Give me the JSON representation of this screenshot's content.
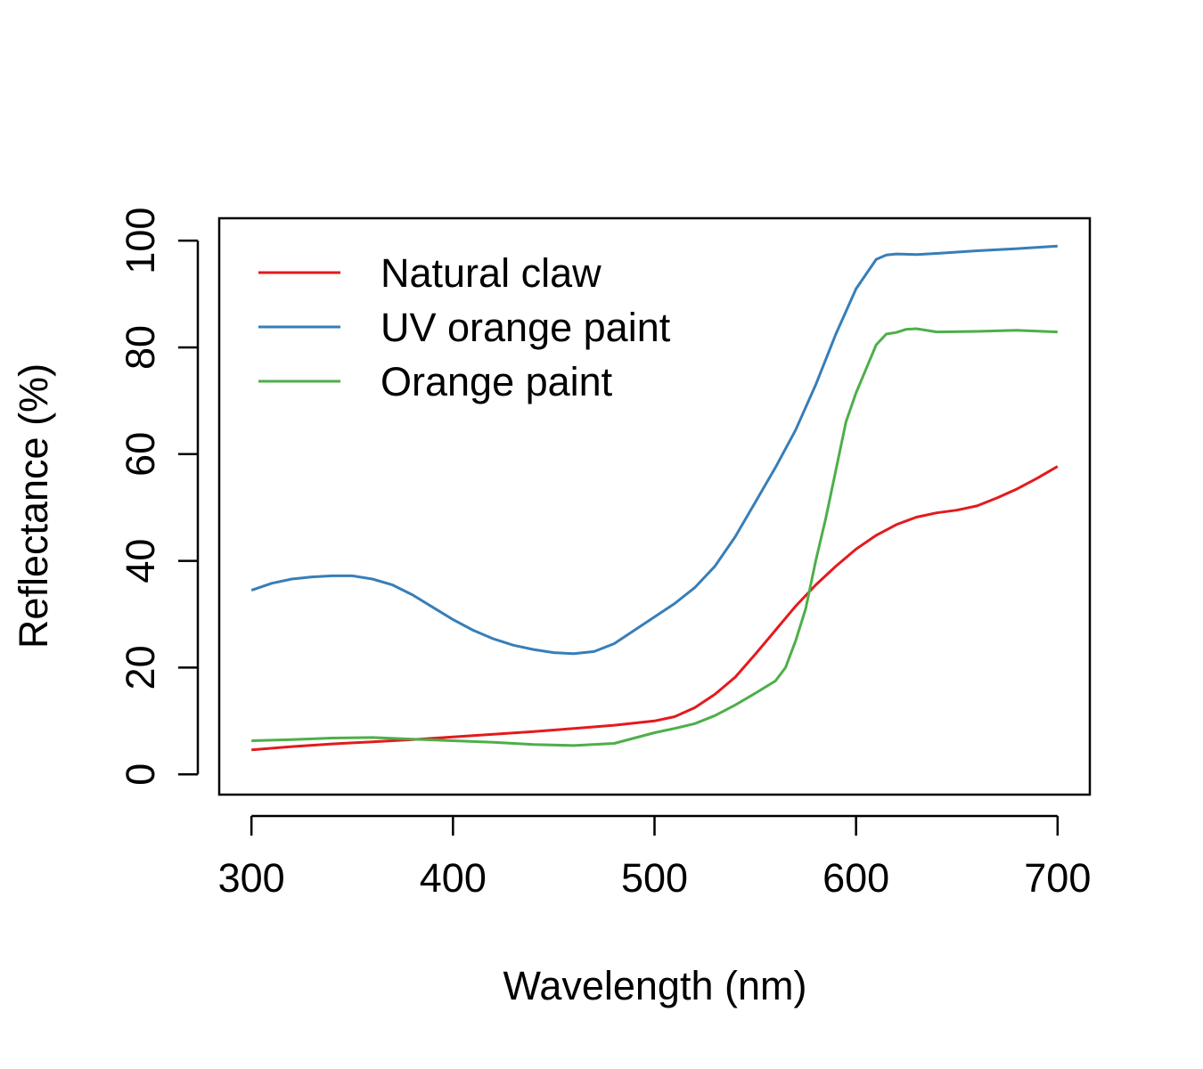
{
  "chart_data": {
    "type": "line",
    "xlabel": "Wavelength (nm)",
    "ylabel": "Reflectance (%)",
    "xlim": [
      284,
      1224
    ],
    "xlim_data": [
      284,
      716
    ],
    "ylim": [
      -3.8,
      104.2
    ],
    "x_ticks": [
      300,
      400,
      500,
      600,
      700
    ],
    "y_ticks": [
      0,
      20,
      40,
      60,
      80,
      100
    ],
    "grid": false,
    "legend_position": "top-left",
    "series": [
      {
        "name": "Natural claw",
        "color": "#e41a1c",
        "points": [
          [
            300,
            4.6
          ],
          [
            320,
            5.2
          ],
          [
            340,
            5.7
          ],
          [
            360,
            6.1
          ],
          [
            380,
            6.5
          ],
          [
            400,
            7.0
          ],
          [
            420,
            7.5
          ],
          [
            440,
            8.0
          ],
          [
            460,
            8.6
          ],
          [
            480,
            9.2
          ],
          [
            500,
            10.0
          ],
          [
            510,
            10.8
          ],
          [
            520,
            12.5
          ],
          [
            530,
            15.0
          ],
          [
            540,
            18.2
          ],
          [
            550,
            22.5
          ],
          [
            560,
            27.0
          ],
          [
            570,
            31.5
          ],
          [
            580,
            35.5
          ],
          [
            590,
            39.0
          ],
          [
            600,
            42.2
          ],
          [
            610,
            44.8
          ],
          [
            620,
            46.8
          ],
          [
            630,
            48.2
          ],
          [
            640,
            49.0
          ],
          [
            650,
            49.5
          ],
          [
            660,
            50.3
          ],
          [
            670,
            51.8
          ],
          [
            680,
            53.5
          ],
          [
            690,
            55.5
          ],
          [
            700,
            57.7
          ]
        ]
      },
      {
        "name": "UV orange paint",
        "color": "#377eb8",
        "points": [
          [
            300,
            34.5
          ],
          [
            310,
            35.8
          ],
          [
            320,
            36.6
          ],
          [
            330,
            37.0
          ],
          [
            340,
            37.2
          ],
          [
            350,
            37.2
          ],
          [
            360,
            36.6
          ],
          [
            370,
            35.5
          ],
          [
            380,
            33.6
          ],
          [
            390,
            31.3
          ],
          [
            400,
            29.0
          ],
          [
            410,
            27.0
          ],
          [
            420,
            25.4
          ],
          [
            430,
            24.2
          ],
          [
            440,
            23.4
          ],
          [
            450,
            22.8
          ],
          [
            460,
            22.6
          ],
          [
            470,
            23.0
          ],
          [
            480,
            24.5
          ],
          [
            490,
            27.0
          ],
          [
            500,
            29.5
          ],
          [
            510,
            32.0
          ],
          [
            520,
            35.0
          ],
          [
            530,
            39.0
          ],
          [
            540,
            44.5
          ],
          [
            550,
            51.0
          ],
          [
            560,
            57.5
          ],
          [
            570,
            64.5
          ],
          [
            580,
            73.0
          ],
          [
            590,
            82.5
          ],
          [
            600,
            91.0
          ],
          [
            610,
            96.5
          ],
          [
            615,
            97.3
          ],
          [
            620,
            97.5
          ],
          [
            630,
            97.4
          ],
          [
            640,
            97.6
          ],
          [
            660,
            98.1
          ],
          [
            680,
            98.5
          ],
          [
            700,
            99.0
          ]
        ]
      },
      {
        "name": "Orange paint",
        "color": "#4daf4a",
        "points": [
          [
            300,
            6.3
          ],
          [
            320,
            6.5
          ],
          [
            340,
            6.8
          ],
          [
            360,
            6.9
          ],
          [
            380,
            6.6
          ],
          [
            400,
            6.3
          ],
          [
            420,
            6.0
          ],
          [
            440,
            5.6
          ],
          [
            460,
            5.4
          ],
          [
            480,
            5.8
          ],
          [
            490,
            6.8
          ],
          [
            500,
            7.8
          ],
          [
            510,
            8.6
          ],
          [
            520,
            9.5
          ],
          [
            530,
            11.0
          ],
          [
            540,
            13.0
          ],
          [
            550,
            15.2
          ],
          [
            560,
            17.5
          ],
          [
            565,
            20.0
          ],
          [
            570,
            25.0
          ],
          [
            575,
            31.0
          ],
          [
            580,
            40.0
          ],
          [
            585,
            48.0
          ],
          [
            590,
            57.0
          ],
          [
            595,
            66.0
          ],
          [
            600,
            71.5
          ],
          [
            605,
            76.0
          ],
          [
            610,
            80.5
          ],
          [
            615,
            82.5
          ],
          [
            620,
            82.8
          ],
          [
            625,
            83.4
          ],
          [
            630,
            83.5
          ],
          [
            640,
            82.9
          ],
          [
            660,
            83.0
          ],
          [
            680,
            83.2
          ],
          [
            700,
            82.9
          ]
        ]
      }
    ]
  }
}
